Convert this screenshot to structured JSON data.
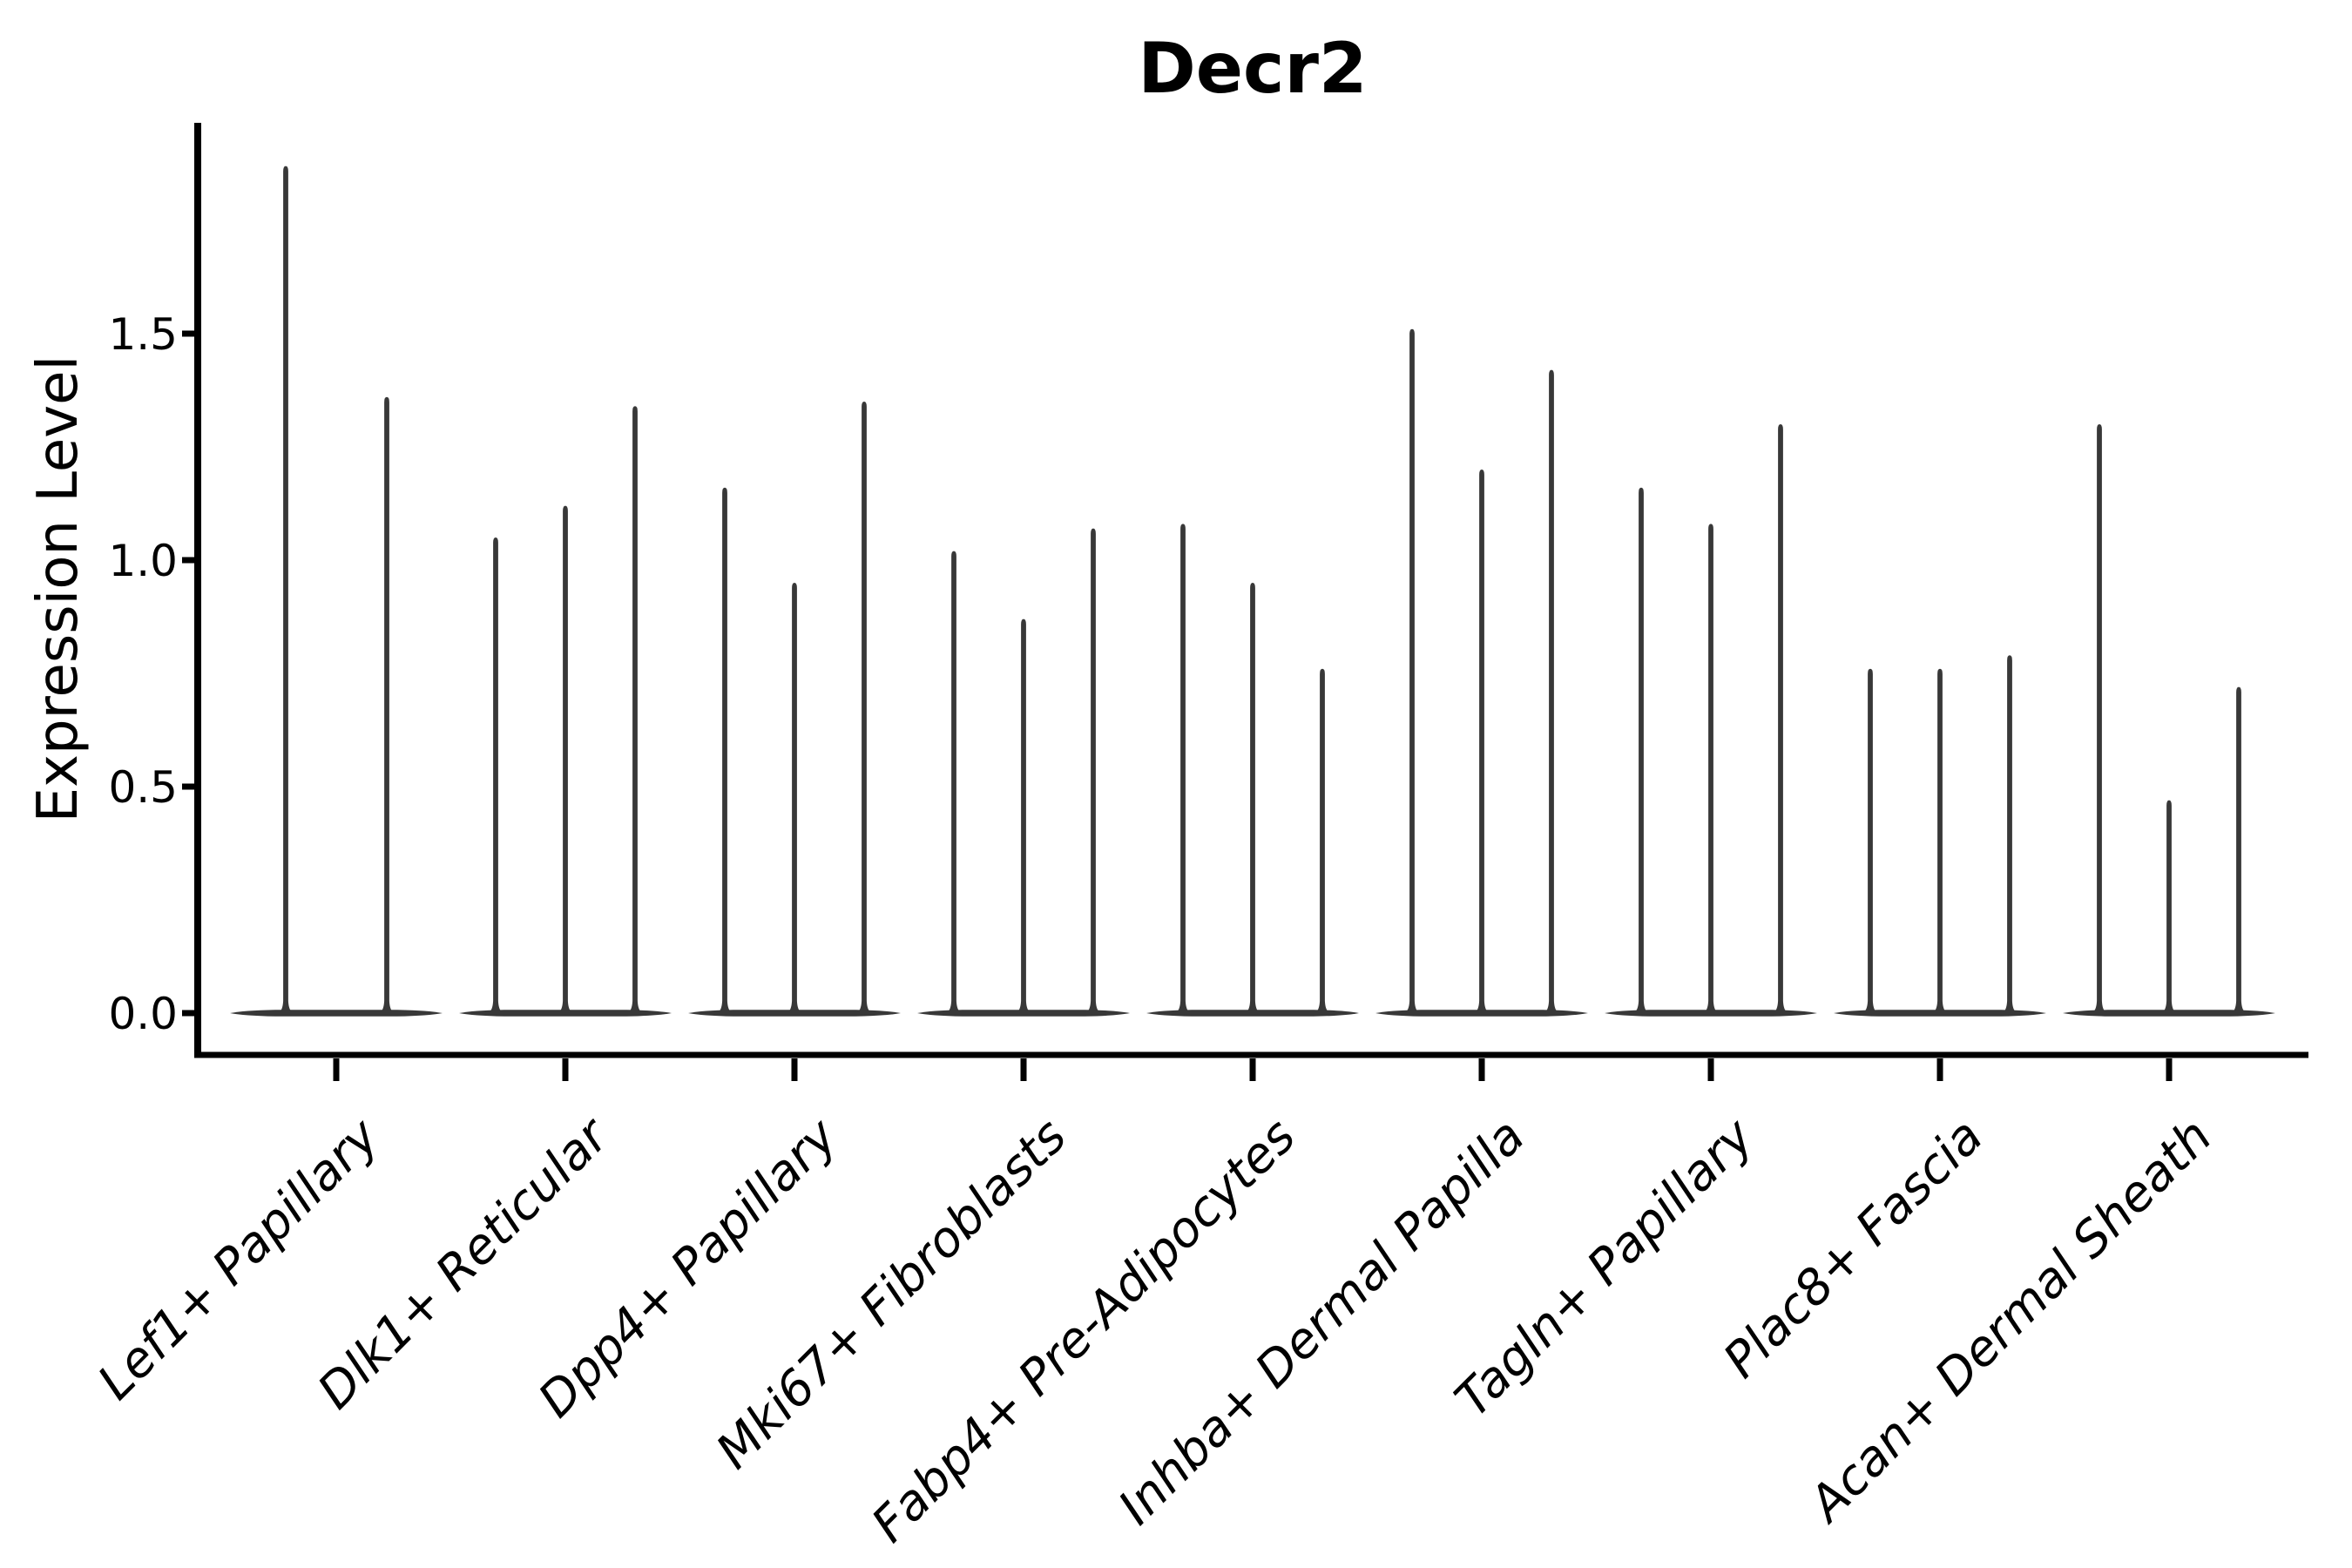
{
  "title": "Decr2",
  "chart_data": {
    "type": "violin",
    "title": "Decr2",
    "xlabel": "",
    "ylabel": "Expression Level",
    "ylim": [
      0,
      1.96
    ],
    "yticks": [
      0.0,
      0.5,
      1.0,
      1.5
    ],
    "ytick_labels": [
      "0.0",
      "0.5",
      "1.0",
      "1.5"
    ],
    "grid": false,
    "legend": "none",
    "x_tick_label_style": "italic, rotated 45 degrees, anchored at tick",
    "violin_shape_note": "Each violin is an extremely bottom-heavy expression distribution: a wide flat lens of density at 0 and a thin vertical spike rising to the listed maximum expression value.",
    "categories": [
      "Lef1+ Papillary",
      "Dlk1+ Reticular",
      "Dpp4+ Papillary",
      "Mki67+ Fibroblasts",
      "Fabp4+ Pre-Adipocytes",
      "Inhba+ Dermal Papilla",
      "Tagln+ Papillary",
      "Plac8+ Fascia",
      "Acan+ Dermal Sheath"
    ],
    "groups": [
      {
        "category": "Lef1+ Papillary",
        "violin_maxima": [
          1.87,
          1.36
        ]
      },
      {
        "category": "Dlk1+ Reticular",
        "violin_maxima": [
          1.05,
          1.12,
          1.34
        ]
      },
      {
        "category": "Dpp4+ Papillary",
        "violin_maxima": [
          1.16,
          0.95,
          1.35
        ]
      },
      {
        "category": "Mki67+ Fibroblasts",
        "violin_maxima": [
          1.02,
          0.87,
          1.07
        ]
      },
      {
        "category": "Fabp4+ Pre-Adipocytes",
        "violin_maxima": [
          1.08,
          0.95,
          0.76
        ]
      },
      {
        "category": "Inhba+ Dermal Papilla",
        "violin_maxima": [
          1.51,
          1.2,
          1.42
        ]
      },
      {
        "category": "Tagln+ Papillary",
        "violin_maxima": [
          1.16,
          1.08,
          1.3
        ]
      },
      {
        "category": "Plac8+ Fascia",
        "violin_maxima": [
          0.76,
          0.76,
          0.79
        ]
      },
      {
        "category": "Acan+ Dermal Sheath",
        "violin_maxima": [
          1.3,
          0.47,
          0.72
        ]
      }
    ],
    "colors": {
      "violin": "#383838",
      "axis": "#000000",
      "text": "#000000",
      "background": "#ffffff"
    }
  }
}
